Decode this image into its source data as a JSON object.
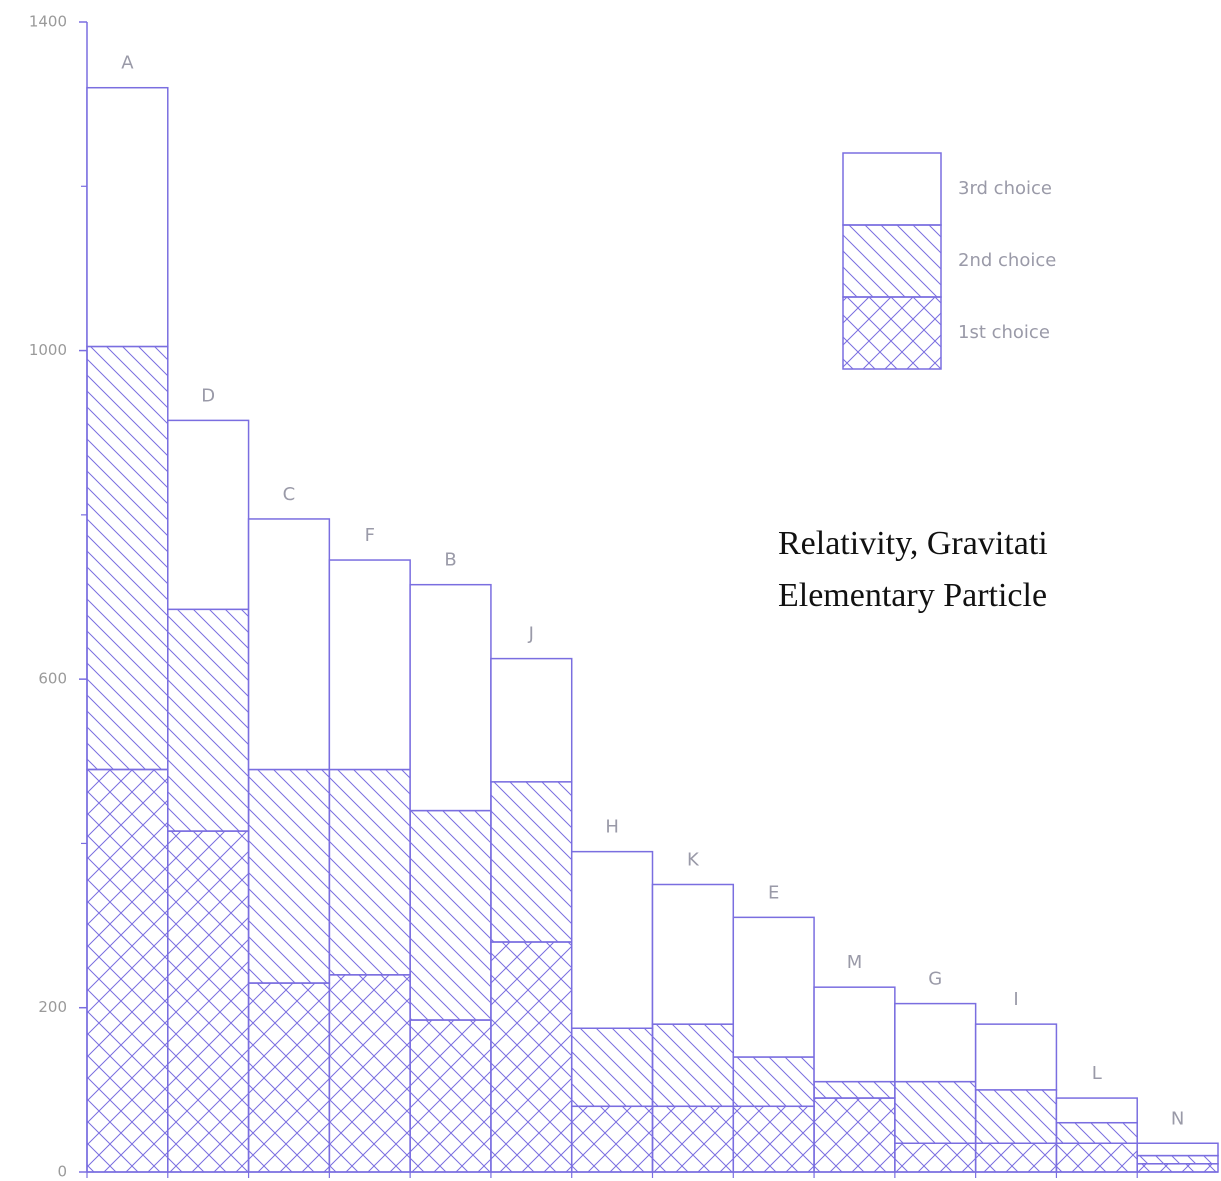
{
  "chart_data": {
    "type": "bar",
    "stacked": true,
    "color": "#7a6ee0",
    "categories": [
      "A",
      "D",
      "C",
      "F",
      "B",
      "J",
      "H",
      "K",
      "E",
      "M",
      "G",
      "I",
      "L",
      "N"
    ],
    "series": [
      {
        "name": "1st choice",
        "hatch": "cross",
        "values": [
          490,
          415,
          230,
          240,
          185,
          280,
          80,
          80,
          80,
          90,
          35,
          35,
          35,
          10
        ]
      },
      {
        "name": "2nd choice",
        "hatch": "diagonal",
        "values": [
          515,
          270,
          260,
          250,
          255,
          195,
          95,
          100,
          60,
          20,
          75,
          65,
          25,
          10
        ]
      },
      {
        "name": "3rd choice",
        "hatch": "none",
        "values": [
          315,
          230,
          305,
          255,
          275,
          150,
          215,
          170,
          170,
          115,
          95,
          80,
          30,
          15
        ]
      }
    ],
    "ylim": [
      0,
      1400
    ],
    "yticks": [
      0,
      200,
      600,
      1000,
      1400
    ],
    "yticks_minor": [
      400,
      800,
      1200
    ],
    "annotation": [
      "Relativity, Gravitati",
      "Elementary Particle"
    ]
  }
}
